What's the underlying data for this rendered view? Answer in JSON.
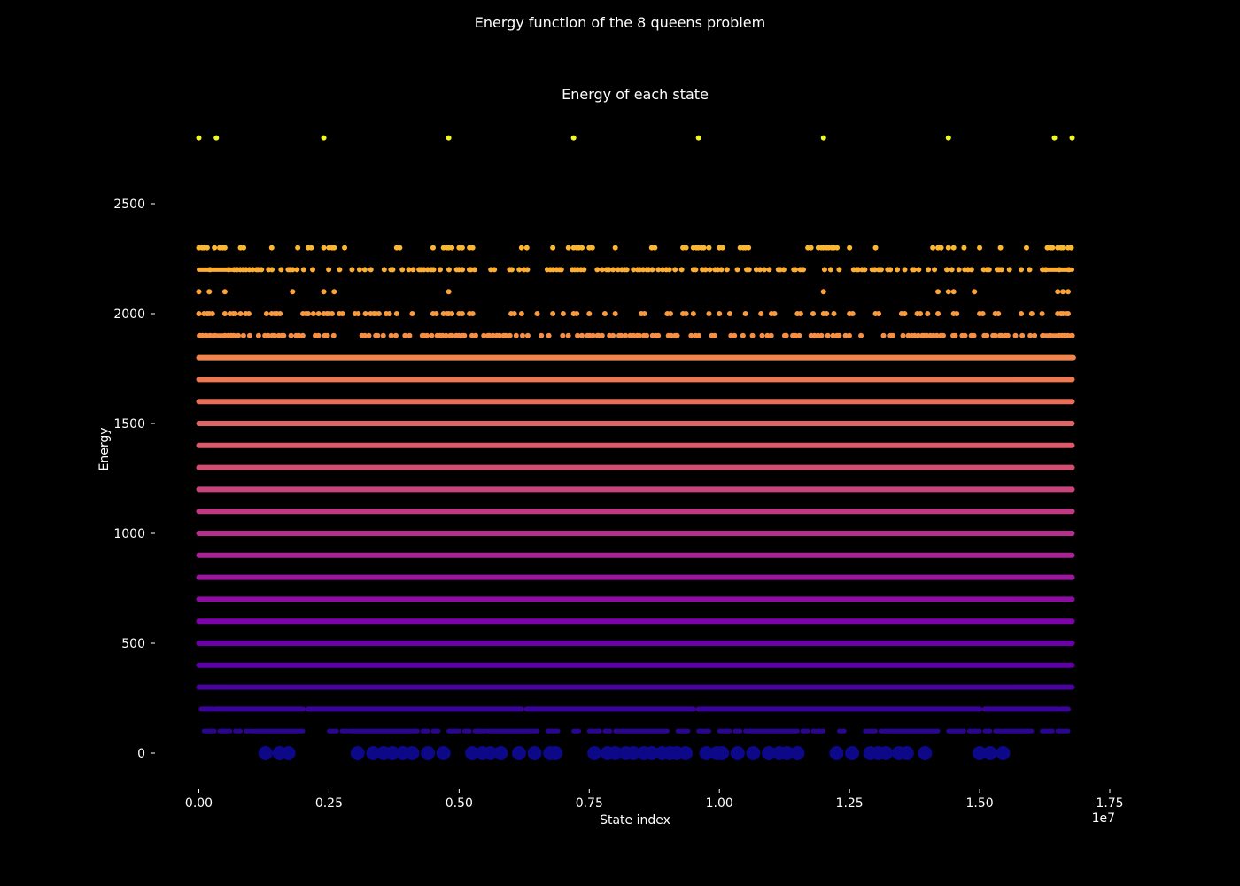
{
  "figure": {
    "suptitle": "Energy function of the 8 queens problem"
  },
  "chart_data": {
    "type": "scatter",
    "title": "Energy of each state",
    "xlabel": "State index",
    "ylabel": "Energy",
    "x_offset_label": "1e7",
    "xlim": [
      -0.04,
      1.75
    ],
    "ylim": [
      -150,
      2950
    ],
    "x_ticks": [
      0.0,
      0.25,
      0.5,
      0.75,
      1.0,
      1.25,
      1.5,
      1.75
    ],
    "x_tick_labels": [
      "0.00",
      "0.25",
      "0.50",
      "0.75",
      "1.00",
      "1.25",
      "1.50",
      "1.75"
    ],
    "y_ticks": [
      0,
      500,
      1000,
      1500,
      2000,
      2500
    ],
    "y_tick_labels": [
      "0",
      "500",
      "1000",
      "1500",
      "2000",
      "2500"
    ],
    "x_range_data": [
      0,
      1.6777
    ],
    "colormap": "plasma",
    "grid": false,
    "levels": [
      {
        "energy": 0,
        "color": "#0d0887",
        "pattern": "sparse-large",
        "positions": [
          0.128,
          0.155,
          0.172,
          0.305,
          0.335,
          0.355,
          0.372,
          0.392,
          0.41,
          0.44,
          0.47,
          0.525,
          0.545,
          0.56,
          0.58,
          0.615,
          0.645,
          0.675,
          0.685,
          0.76,
          0.785,
          0.8,
          0.82,
          0.835,
          0.855,
          0.87,
          0.89,
          0.905,
          0.918,
          0.935,
          0.975,
          0.995,
          1.005,
          1.035,
          1.065,
          1.095,
          1.115,
          1.13,
          1.15,
          1.225,
          1.255,
          1.29,
          1.305,
          1.32,
          1.345,
          1.36,
          1.395,
          1.5,
          1.52,
          1.545
        ]
      },
      {
        "energy": 100,
        "color": "#2a0593",
        "pattern": "dashed",
        "segments": [
          [
            0.01,
            0.03
          ],
          [
            0.04,
            0.06
          ],
          [
            0.07,
            0.08
          ],
          [
            0.09,
            0.095
          ],
          [
            0.1,
            0.2
          ],
          [
            0.25,
            0.265
          ],
          [
            0.275,
            0.285
          ],
          [
            0.29,
            0.42
          ],
          [
            0.43,
            0.44
          ],
          [
            0.45,
            0.46
          ],
          [
            0.48,
            0.5
          ],
          [
            0.51,
            0.52
          ],
          [
            0.53,
            0.55
          ],
          [
            0.555,
            0.65
          ],
          [
            0.67,
            0.69
          ],
          [
            0.72,
            0.73
          ],
          [
            0.75,
            0.77
          ],
          [
            0.78,
            0.79
          ],
          [
            0.8,
            0.9
          ],
          [
            0.92,
            0.94
          ],
          [
            0.96,
            0.98
          ],
          [
            1.0,
            1.02
          ],
          [
            1.03,
            1.04
          ],
          [
            1.05,
            1.15
          ],
          [
            1.16,
            1.17
          ],
          [
            1.18,
            1.2
          ],
          [
            1.23,
            1.24
          ],
          [
            1.28,
            1.3
          ],
          [
            1.31,
            1.42
          ],
          [
            1.44,
            1.47
          ],
          [
            1.48,
            1.5
          ],
          [
            1.51,
            1.52
          ],
          [
            1.53,
            1.6
          ],
          [
            1.62,
            1.64
          ],
          [
            1.65,
            1.67
          ]
        ]
      },
      {
        "energy": 200,
        "color": "#3a049a",
        "pattern": "near-solid",
        "segments": [
          [
            0.005,
            0.025
          ],
          [
            0.03,
            0.2
          ],
          [
            0.21,
            0.62
          ],
          [
            0.63,
            0.95
          ],
          [
            0.96,
            1.5
          ],
          [
            1.51,
            1.65
          ],
          [
            1.655,
            1.67
          ]
        ]
      },
      {
        "energy": 300,
        "color": "#4903a0",
        "pattern": "solid"
      },
      {
        "energy": 400,
        "color": "#5c01a6",
        "pattern": "solid"
      },
      {
        "energy": 500,
        "color": "#6a00a8",
        "pattern": "solid"
      },
      {
        "energy": 600,
        "color": "#7e03a8",
        "pattern": "solid"
      },
      {
        "energy": 700,
        "color": "#8e0ca4",
        "pattern": "solid"
      },
      {
        "energy": 800,
        "color": "#9c179e",
        "pattern": "solid"
      },
      {
        "energy": 900,
        "color": "#aa2395",
        "pattern": "solid"
      },
      {
        "energy": 1000,
        "color": "#b52f8c",
        "pattern": "solid"
      },
      {
        "energy": 1100,
        "color": "#c03a83",
        "pattern": "solid"
      },
      {
        "energy": 1200,
        "color": "#c8447a",
        "pattern": "solid"
      },
      {
        "energy": 1300,
        "color": "#d24e71",
        "pattern": "solid"
      },
      {
        "energy": 1400,
        "color": "#da5a6a",
        "pattern": "solid"
      },
      {
        "energy": 1500,
        "color": "#e16462",
        "pattern": "solid"
      },
      {
        "energy": 1600,
        "color": "#e76f5a",
        "pattern": "solid"
      },
      {
        "energy": 1700,
        "color": "#ed7953",
        "pattern": "solid"
      },
      {
        "energy": 1800,
        "color": "#f1844b",
        "pattern": "near-solid",
        "segments": [
          [
            0.0,
            1.68
          ]
        ]
      },
      {
        "energy": 1900,
        "color": "#f68f44",
        "pattern": "dense-dots"
      },
      {
        "energy": 2000,
        "color": "#f89a3e",
        "pattern": "clusters",
        "positions": [
          0.0,
          0.01,
          0.02,
          0.05,
          0.06,
          0.07,
          0.08,
          0.09,
          0.13,
          0.14,
          0.15,
          0.2,
          0.21,
          0.22,
          0.23,
          0.24,
          0.25,
          0.27,
          0.3,
          0.32,
          0.33,
          0.34,
          0.36,
          0.38,
          0.41,
          0.45,
          0.47,
          0.48,
          0.5,
          0.52,
          0.6,
          0.62,
          0.65,
          0.68,
          0.7,
          0.72,
          0.75,
          0.78,
          0.8,
          0.85,
          0.9,
          0.93,
          0.95,
          0.98,
          1.0,
          1.02,
          1.05,
          1.08,
          1.1,
          1.15,
          1.18,
          1.2,
          1.22,
          1.25,
          1.3,
          1.35,
          1.38,
          1.4,
          1.42,
          1.45,
          1.5,
          1.53,
          1.58,
          1.6,
          1.62,
          1.65,
          1.66,
          1.67
        ]
      },
      {
        "energy": 2100,
        "color": "#fba238",
        "pattern": "sparse",
        "positions": [
          0.0,
          0.02,
          0.05,
          0.18,
          0.24,
          0.26,
          0.48,
          1.2,
          1.42,
          1.44,
          1.45,
          1.49,
          1.65,
          1.66,
          1.67
        ]
      },
      {
        "energy": 2200,
        "color": "#fcad33",
        "pattern": "dense-dots"
      },
      {
        "energy": 2300,
        "color": "#fdb72f",
        "pattern": "clusters",
        "positions": [
          0.0,
          0.01,
          0.03,
          0.04,
          0.05,
          0.08,
          0.14,
          0.19,
          0.21,
          0.24,
          0.25,
          0.26,
          0.28,
          0.38,
          0.45,
          0.47,
          0.48,
          0.5,
          0.52,
          0.62,
          0.63,
          0.68,
          0.71,
          0.72,
          0.73,
          0.75,
          0.8,
          0.87,
          0.93,
          0.95,
          0.96,
          0.97,
          0.98,
          1.0,
          1.04,
          1.05,
          1.17,
          1.19,
          1.2,
          1.21,
          1.22,
          1.25,
          1.3,
          1.41,
          1.42,
          1.44,
          1.45,
          1.47,
          1.5,
          1.54,
          1.59,
          1.63,
          1.64,
          1.65,
          1.66,
          1.67
        ]
      },
      {
        "energy": 2800,
        "color": "#f0f921",
        "pattern": "points",
        "positions": [
          0.0,
          0.0336,
          0.24,
          0.48,
          0.72,
          0.96,
          1.2,
          1.44,
          1.6437,
          1.6777
        ]
      }
    ]
  }
}
